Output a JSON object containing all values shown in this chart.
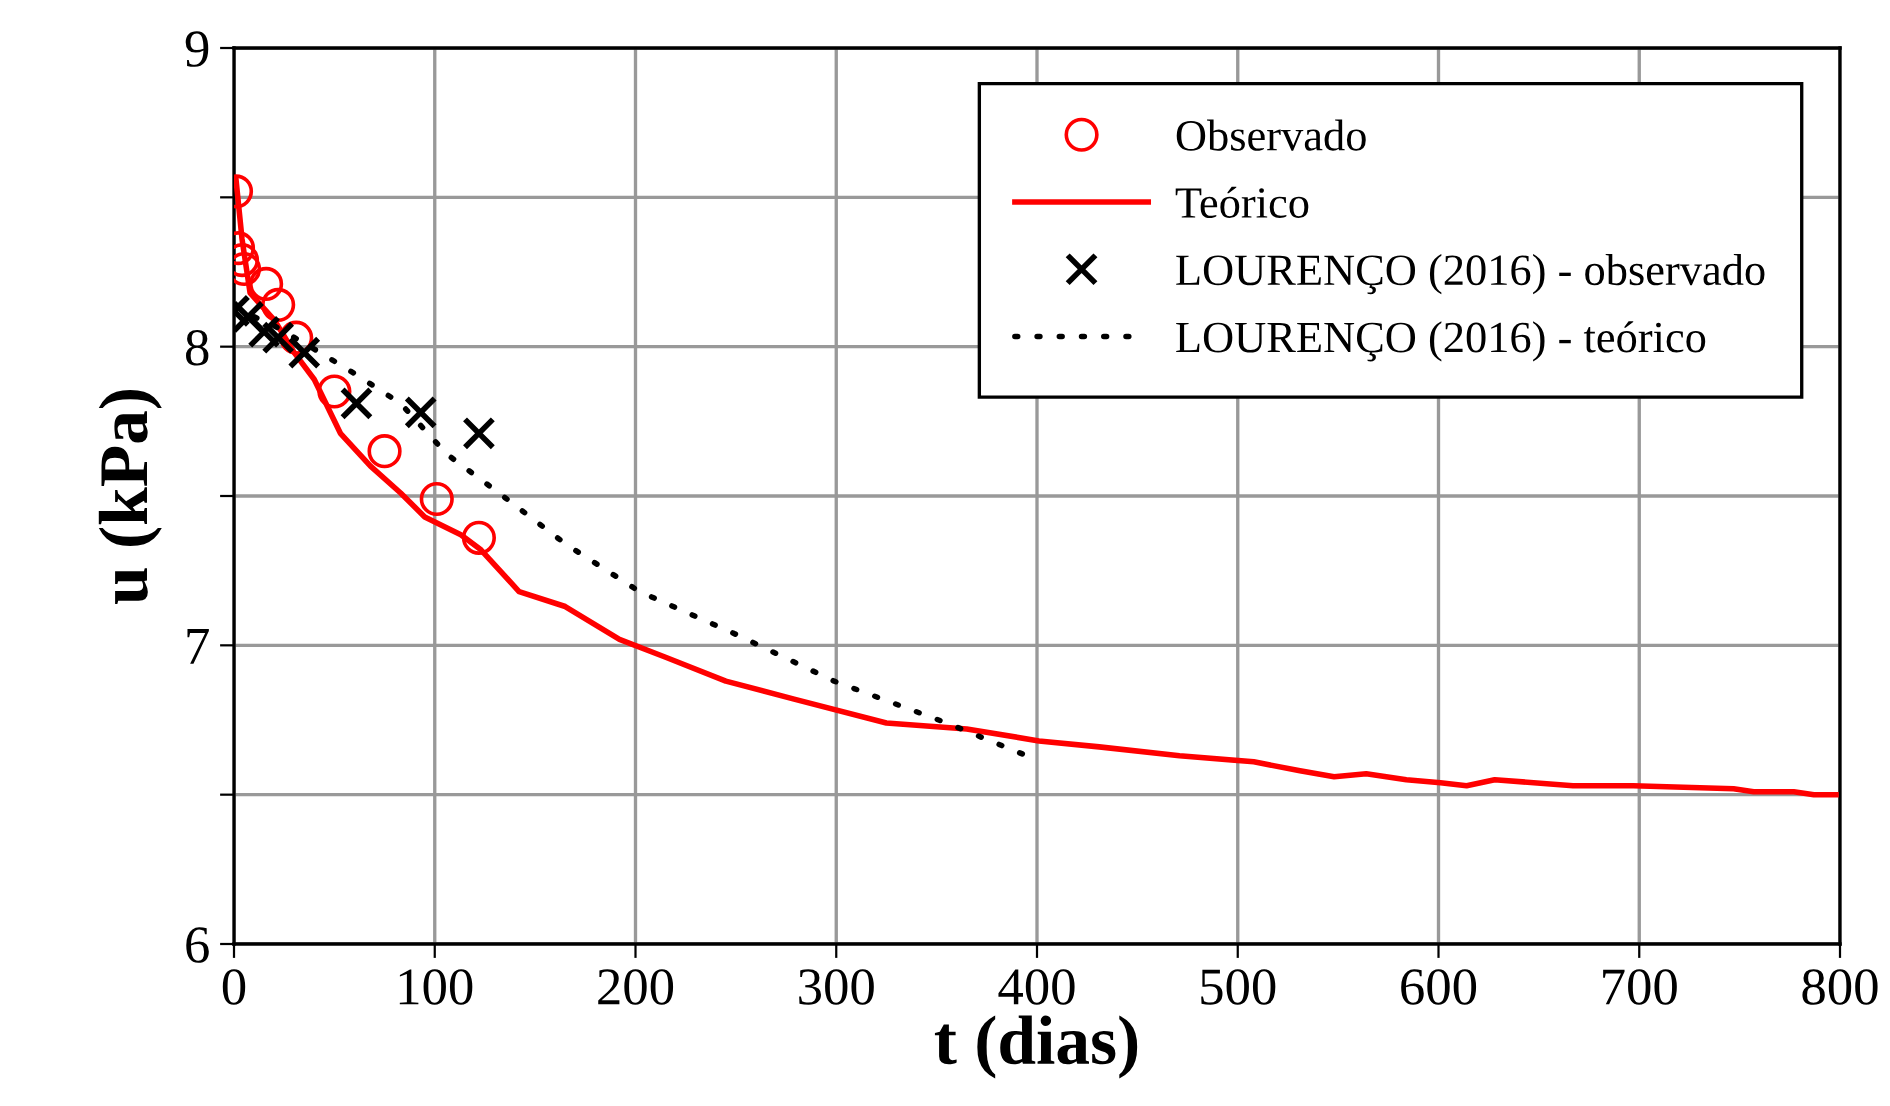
{
  "chart_data": {
    "type": "line",
    "xlabel": "t (dias)",
    "ylabel": "u (kPa)",
    "xlim": [
      0,
      800
    ],
    "ylim": [
      6,
      9
    ],
    "xticks": [
      0,
      100,
      200,
      300,
      400,
      500,
      600,
      700,
      800
    ],
    "yticks": [
      6,
      {
        "value": 6.5,
        "label": null
      },
      7,
      {
        "value": 7.5,
        "label": null
      },
      8,
      {
        "value": 8.5,
        "label": null
      },
      9
    ],
    "grid": true,
    "legend": "top right",
    "series": [
      {
        "name": "Observado",
        "type": "scatter",
        "marker": "circle",
        "color": "#ff0000",
        "x": [
          1,
          2,
          4,
          5,
          16,
          22,
          31,
          50,
          75,
          101,
          122
        ],
        "values": [
          8.52,
          8.33,
          8.29,
          8.26,
          8.21,
          8.14,
          8.03,
          7.85,
          7.65,
          7.49,
          7.36
        ]
      },
      {
        "name": "Teórico",
        "line_style": "solid",
        "color": "#ff0000",
        "x": [
          1,
          4,
          8,
          20,
          30,
          40,
          53,
          68,
          83,
          95,
          113,
          123,
          142,
          165,
          192,
          215,
          245,
          279,
          325,
          365,
          401,
          431,
          471,
          508,
          531,
          548,
          564,
          584,
          601,
          614,
          628,
          667,
          697,
          747,
          757,
          777,
          787,
          798
        ],
        "values": [
          8.56,
          8.36,
          8.18,
          8.09,
          7.98,
          7.89,
          7.71,
          7.6,
          7.51,
          7.43,
          7.37,
          7.32,
          7.18,
          7.13,
          7.02,
          6.96,
          6.88,
          6.82,
          6.74,
          6.72,
          6.68,
          6.66,
          6.63,
          6.61,
          6.58,
          6.56,
          6.57,
          6.55,
          6.54,
          6.53,
          6.55,
          6.53,
          6.53,
          6.52,
          6.51,
          6.51,
          6.5,
          6.5
        ]
      },
      {
        "name": "LOURENÇO (2016) - observado",
        "type": "scatter",
        "marker": "cross",
        "color": "#000000",
        "x": [
          0,
          7,
          15,
          22,
          35,
          61,
          93,
          122
        ],
        "values": [
          8.12,
          8.1,
          8.05,
          8.03,
          7.98,
          7.81,
          7.78,
          7.71
        ]
      },
      {
        "name": "LOURENÇO (2016) - teórico",
        "line_style": "dotted",
        "color": "#000000",
        "x": [
          0,
          20,
          43,
          60,
          83,
          106,
          132,
          165,
          202,
          249,
          299,
          355,
          395
        ],
        "values": [
          8.13,
          8.07,
          7.98,
          7.91,
          7.81,
          7.64,
          7.51,
          7.34,
          7.18,
          7.04,
          6.88,
          6.74,
          6.63
        ]
      }
    ]
  }
}
